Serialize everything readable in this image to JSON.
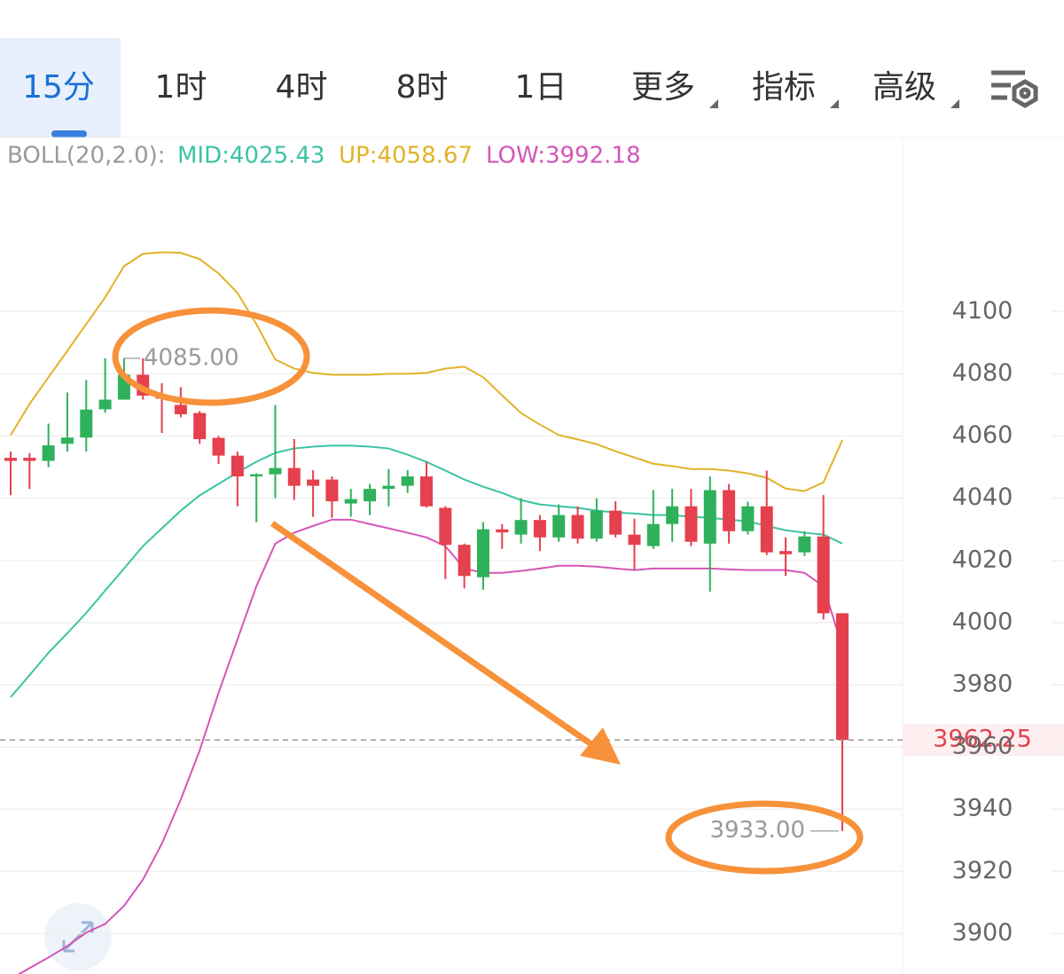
{
  "tabs": [
    "15分",
    "1时",
    "4时",
    "8时",
    "1日",
    "更多",
    "指标",
    "高级"
  ],
  "indicator": {
    "name": "BOLL(20,2.0):",
    "items": [
      "MID:4025.43",
      "UP:4058.67",
      "LOW:3992.18"
    ]
  },
  "chart_data": {
    "type": "candlestick",
    "up_color": "#2eb15a",
    "down_color": "#e5404d",
    "open": [
      4053,
      4053,
      4052,
      4057.5,
      4059.5,
      4068.6,
      4071.7,
      4079.7,
      4073,
      4070,
      4067.4,
      4059.4,
      4053.7,
      4047,
      4047.7,
      4049.7,
      4046,
      4046,
      4038.3,
      4039,
      4043,
      4044,
      4047,
      4036.9,
      4025,
      4014.6,
      4030,
      4028.3,
      4033,
      4027.4,
      4034.6,
      4027,
      4036,
      4028.3,
      4024.6,
      4031.7,
      4037.4,
      4025.4,
      4042.6,
      4029.4,
      4037.4,
      4023,
      4022.6,
      4027.7,
      4003
    ],
    "high": [
      4055,
      4054.5,
      4064,
      4074,
      4078,
      4085,
      4085,
      4085,
      4077,
      4075.7,
      4068,
      4060,
      4055,
      4048,
      4070,
      4059,
      4049,
      4047,
      4043,
      4044.6,
      4049.4,
      4049,
      4051.7,
      4037.4,
      4025.4,
      4032.3,
      4031.7,
      4040,
      4034.6,
      4038,
      4037.4,
      4040,
      4039,
      4033.4,
      4042.6,
      4043,
      4043,
      4047,
      4044.6,
      4038.9,
      4048.9,
      4027.4,
      4029.4,
      4041,
      4003
    ],
    "low": [
      4041,
      4043,
      4050,
      4055,
      4055,
      4067.5,
      4071.7,
      4071.7,
      4061,
      4066,
      4057.5,
      4051,
      4037.4,
      4032.3,
      4040,
      4039.4,
      4034,
      4033.7,
      4034,
      4034.6,
      4037.4,
      4041.7,
      4037,
      4014,
      4011,
      4010.6,
      4023.7,
      4025.4,
      4023,
      4026,
      4025.4,
      4026,
      4027.4,
      4016.9,
      4023.7,
      4026,
      4024.6,
      4010,
      4025.4,
      4028.3,
      4021.7,
      4015,
      4021.4,
      4001,
      3933
    ],
    "close": [
      4052,
      4052,
      4057,
      4059.5,
      4068.5,
      4071.7,
      4079.7,
      4073,
      4072,
      4067,
      4059,
      4053.7,
      4047,
      4047.7,
      4049.7,
      4044,
      4044,
      4039,
      4039.7,
      4043,
      4044,
      4047,
      4037.4,
      4025,
      4015,
      4030,
      4029,
      4033,
      4027.4,
      4034.6,
      4027,
      4036,
      4028.3,
      4025,
      4031.7,
      4037.4,
      4026,
      4042.6,
      4029.4,
      4037.4,
      4022.6,
      4022,
      4027.7,
      4003,
      3962.25
    ],
    "series": [
      {
        "color": "#e2b227",
        "values": [
          4060.3,
          4070.3,
          4078.9,
          4087.4,
          4096,
          4104.6,
          4114.6,
          4118.6,
          4119.1,
          4118.9,
          4116.9,
          4112.3,
          4106,
          4096,
          4084.6,
          4081.7,
          4080.3,
          4079.7,
          4079.7,
          4079.7,
          4080,
          4080,
          4080.3,
          4081.7,
          4082.3,
          4078.9,
          4073.1,
          4067.4,
          4063.7,
          4060.3,
          4058.9,
          4057.4,
          4055.1,
          4053.1,
          4051.1,
          4050.3,
          4049.4,
          4049.4,
          4048.9,
          4048,
          4046.6,
          4043.1,
          4042.3,
          4045.1,
          4058.67
        ]
      },
      {
        "color": "#3cc3a4",
        "values": [
          3976,
          3983.1,
          3990.3,
          3996.6,
          4003.1,
          4010.3,
          4017.4,
          4024.6,
          4030.3,
          4036,
          4040.9,
          4044.6,
          4048.3,
          4051.7,
          4054.6,
          4056,
          4056.6,
          4056.9,
          4056.9,
          4056.6,
          4056,
          4054,
          4051.7,
          4048.9,
          4046,
          4043.7,
          4041.7,
          4039.4,
          4038,
          4037.4,
          4036.9,
          4036,
          4035.4,
          4035.1,
          4034.6,
          4034.6,
          4034,
          4033.7,
          4033.1,
          4032.6,
          4031.1,
          4029.7,
          4028.9,
          4028.3,
          4025.43
        ]
      },
      {
        "color": "#d455b9",
        "values": [
          3885.4,
          3888.9,
          3892.3,
          3896,
          3900.3,
          3903.1,
          3908.9,
          3917.4,
          3928.9,
          3943.1,
          3958.9,
          3977.4,
          3994.6,
          4011.7,
          4025.4,
          4028.9,
          4031.1,
          4033.1,
          4033.1,
          4031.7,
          4030.3,
          4028.9,
          4027.4,
          4024.6,
          4017.4,
          4016,
          4016,
          4016.6,
          4017.4,
          4018.3,
          4018.3,
          4018,
          4017.4,
          4016.9,
          4017.4,
          4017.4,
          4017.4,
          4017.4,
          4017.1,
          4016.9,
          4016.9,
          4016.9,
          4016,
          4011.7,
          3992.18
        ]
      }
    ],
    "ylim": [
      3887,
      4156
    ],
    "yticks": [
      3900,
      3920,
      3940,
      3960,
      3980,
      4000,
      4020,
      4040,
      4060,
      4080,
      4100
    ],
    "grid": true,
    "last_price": 3962.25,
    "high_label": {
      "value": 4085,
      "label": "4085.00"
    },
    "low_label": {
      "value": 3933,
      "label": "3933.00"
    }
  }
}
